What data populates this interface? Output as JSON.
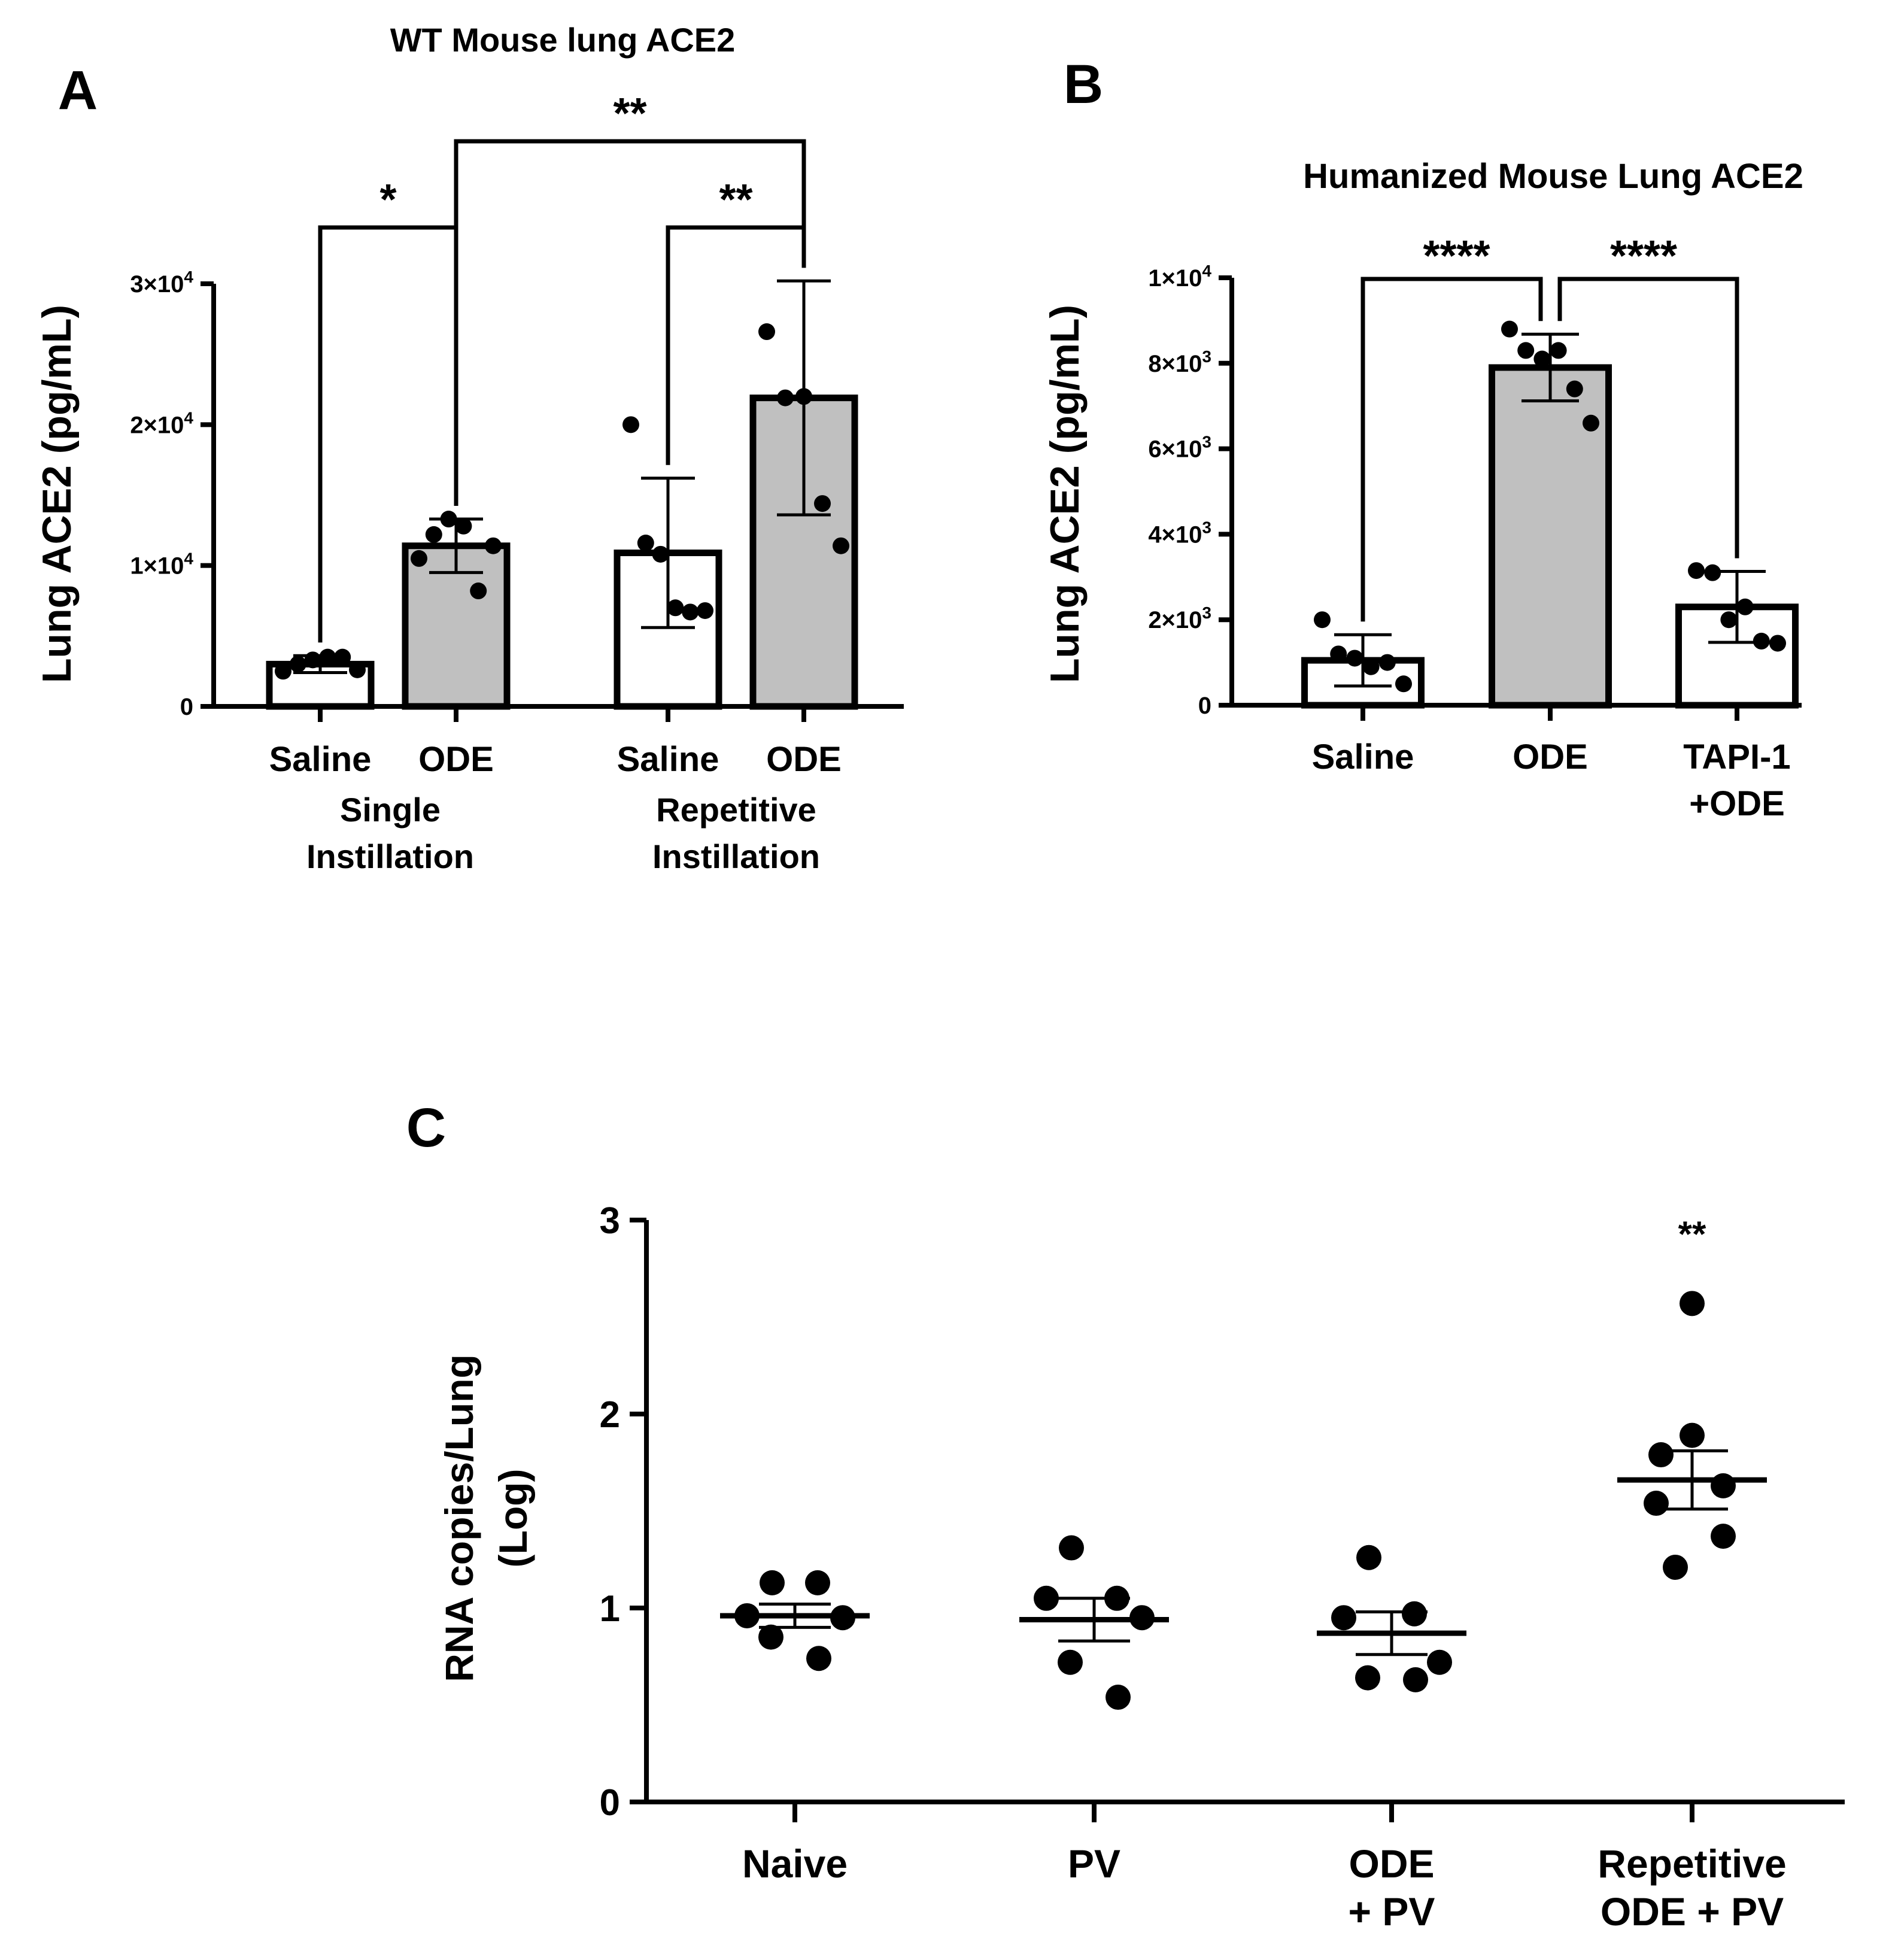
{
  "chart_data": [
    {
      "panel": "A",
      "type": "bar",
      "title": "WT Mouse lung ACE2",
      "ylabel": "Lung ACE2 (pg/mL)",
      "xlabel": "",
      "ylim": [
        0,
        30000
      ],
      "ytick_labels": [
        {
          "value": 0,
          "base": "0",
          "exp": ""
        },
        {
          "value": 10000,
          "base": "1×10",
          "exp": "4"
        },
        {
          "value": 20000,
          "base": "2×10",
          "exp": "4"
        },
        {
          "value": 30000,
          "base": "3×10",
          "exp": "4"
        }
      ],
      "categories": [
        "Saline",
        "ODE",
        "Saline",
        "ODE"
      ],
      "groups": [
        {
          "label_line1": "Single",
          "label_line2": "Instillation",
          "members": [
            0,
            1
          ]
        },
        {
          "label_line1": "Repetitive",
          "label_line2": "Instillation",
          "members": [
            2,
            3
          ]
        }
      ],
      "fills": [
        "#ffffff",
        "#c0c0c0",
        "#ffffff",
        "#c0c0c0"
      ],
      "values": [
        3000,
        11400,
        10900,
        21900
      ],
      "sd": [
        600,
        1900,
        5300,
        8300
      ],
      "points": [
        [
          2500,
          3000,
          3300,
          3500,
          3500,
          2600
        ],
        [
          10500,
          12200,
          13300,
          12800,
          8200,
          11400
        ],
        [
          20000,
          11600,
          10800,
          7000,
          6700,
          6800
        ],
        [
          26600,
          21900,
          22000,
          14400,
          11400
        ]
      ],
      "comparisons": [
        {
          "from": 0,
          "to": 1,
          "label": "*"
        },
        {
          "from": 2,
          "to": 3,
          "label": "**"
        },
        {
          "from": 1,
          "to": 3,
          "label": "**"
        }
      ]
    },
    {
      "panel": "B",
      "type": "bar",
      "title": "Humanized Mouse Lung ACE2",
      "ylabel": "Lung ACE2 (pg/mL)",
      "xlabel": "",
      "ylim": [
        0,
        10000
      ],
      "ytick_labels": [
        {
          "value": 0,
          "base": "0",
          "exp": ""
        },
        {
          "value": 2000,
          "base": "2×10",
          "exp": "3"
        },
        {
          "value": 4000,
          "base": "4×10",
          "exp": "3"
        },
        {
          "value": 6000,
          "base": "6×10",
          "exp": "3"
        },
        {
          "value": 8000,
          "base": "8×10",
          "exp": "3"
        },
        {
          "value": 10000,
          "base": "1×10",
          "exp": "4"
        }
      ],
      "categories": [
        {
          "line1": "Saline",
          "line2": ""
        },
        {
          "line1": "ODE",
          "line2": ""
        },
        {
          "line1": "TAPI-1",
          "line2": "+ODE"
        }
      ],
      "fills": [
        "#ffffff",
        "#c0c0c0",
        "#ffffff"
      ],
      "values": [
        1050,
        7900,
        2300
      ],
      "sd": [
        600,
        780,
        830
      ],
      "points": [
        [
          2000,
          1200,
          1100,
          900,
          1000,
          500
        ],
        [
          8800,
          8300,
          8100,
          8300,
          7400,
          6600
        ],
        [
          3150,
          3100,
          2000,
          2300,
          1500,
          1450
        ]
      ],
      "comparisons": [
        {
          "from": 0,
          "to": 1,
          "label": "****"
        },
        {
          "from": 1,
          "to": 2,
          "label": "****"
        }
      ]
    },
    {
      "panel": "C",
      "type": "scatter",
      "title": "",
      "ylabel_line1": "RNA copies/Lung",
      "ylabel_line2": "(Log)",
      "xlabel": "",
      "ylim": [
        0,
        3
      ],
      "yticks": [
        0,
        1,
        2,
        3
      ],
      "categories": [
        {
          "line1": "Naive",
          "line2": ""
        },
        {
          "line1": "PV",
          "line2": ""
        },
        {
          "line1": "ODE",
          "line2": "+ PV"
        },
        {
          "line1": "Repetitive",
          "line2": "ODE + PV"
        }
      ],
      "means": [
        0.96,
        0.94,
        0.87,
        1.66
      ],
      "sem": [
        0.06,
        0.11,
        0.11,
        0.15
      ],
      "points": [
        [
          1.13,
          1.13,
          0.96,
          0.95,
          0.85,
          0.74
        ],
        [
          1.31,
          1.05,
          1.05,
          0.95,
          0.72,
          0.54
        ],
        [
          1.26,
          0.97,
          0.95,
          0.72,
          0.64,
          0.63
        ],
        [
          2.57,
          1.89,
          1.79,
          1.63,
          1.54,
          1.37,
          1.21
        ]
      ],
      "annotations": [
        {
          "category": 3,
          "label": "**"
        }
      ]
    }
  ],
  "panel_labels": [
    "A",
    "B",
    "C"
  ]
}
